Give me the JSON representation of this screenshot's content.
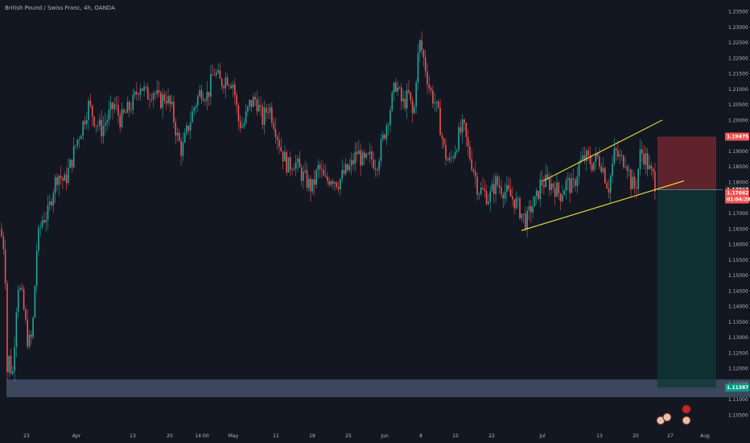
{
  "header": {
    "title": "British Pound / Swiss Franc, 4h, OANDA"
  },
  "colors": {
    "background": "#131722",
    "up": "#26a69a",
    "down": "#ef5350",
    "trendline": "#f2e33a",
    "zone": "#5d6d8e",
    "stop_zone": "#7a2a2f",
    "target_zone": "#0f3a3a"
  },
  "chart_data": {
    "type": "candlestick",
    "symbol": "GBPCHF",
    "interval": "4h",
    "source": "OANDA",
    "ylim": [
      1.1025,
      1.2375
    ],
    "y_ticks": [
      "1.23500",
      "1.23000",
      "1.22500",
      "1.22000",
      "1.21500",
      "1.21000",
      "1.20500",
      "1.20000",
      "1.19500",
      "1.19000",
      "1.18500",
      "1.18000",
      "1.17500",
      "1.17000",
      "1.16500",
      "1.16000",
      "1.15500",
      "1.15000",
      "1.14500",
      "1.14000",
      "1.13500",
      "1.13000",
      "1.12500",
      "1.12000",
      "1.11500",
      "1.11000",
      "1.10500"
    ],
    "x_ticks": [
      "23",
      "Apr",
      "13",
      "20",
      "14:00",
      "May",
      "11",
      "18",
      "25",
      "Jun",
      "8",
      "15",
      "22",
      "Jul",
      "13",
      "20",
      "27",
      "Aug"
    ],
    "path": [
      [
        0,
        1.165
      ],
      [
        6,
        1.158
      ],
      [
        9,
        1.118
      ],
      [
        12,
        1.125
      ],
      [
        15,
        1.115
      ],
      [
        22,
        1.148
      ],
      [
        28,
        1.142
      ],
      [
        35,
        1.128
      ],
      [
        40,
        1.13
      ],
      [
        46,
        1.16
      ],
      [
        52,
        1.168
      ],
      [
        60,
        1.17
      ],
      [
        66,
        1.178
      ],
      [
        72,
        1.183
      ],
      [
        80,
        1.18
      ],
      [
        88,
        1.186
      ],
      [
        95,
        1.193
      ],
      [
        102,
        1.198
      ],
      [
        110,
        1.205
      ],
      [
        118,
        1.2
      ],
      [
        126,
        1.197
      ],
      [
        134,
        1.201
      ],
      [
        142,
        1.205
      ],
      [
        150,
        1.2
      ],
      [
        158,
        1.203
      ],
      [
        166,
        1.206
      ],
      [
        174,
        1.212
      ],
      [
        182,
        1.208
      ],
      [
        190,
        1.21
      ],
      [
        198,
        1.206
      ],
      [
        206,
        1.208
      ],
      [
        214,
        1.203
      ],
      [
        220,
        1.195
      ],
      [
        226,
        1.19
      ],
      [
        234,
        1.198
      ],
      [
        242,
        1.205
      ],
      [
        250,
        1.21
      ],
      [
        258,
        1.208
      ],
      [
        266,
        1.216
      ],
      [
        274,
        1.212
      ],
      [
        282,
        1.214
      ],
      [
        290,
        1.212
      ],
      [
        296,
        1.2
      ],
      [
        302,
        1.198
      ],
      [
        310,
        1.205
      ],
      [
        318,
        1.207
      ],
      [
        326,
        1.2
      ],
      [
        334,
        1.205
      ],
      [
        342,
        1.198
      ],
      [
        350,
        1.19
      ],
      [
        358,
        1.185
      ],
      [
        366,
        1.187
      ],
      [
        374,
        1.183
      ],
      [
        382,
        1.18
      ],
      [
        388,
        1.178
      ],
      [
        396,
        1.185
      ],
      [
        404,
        1.18
      ],
      [
        412,
        1.182
      ],
      [
        420,
        1.18
      ],
      [
        428,
        1.183
      ],
      [
        436,
        1.185
      ],
      [
        444,
        1.19
      ],
      [
        452,
        1.186
      ],
      [
        460,
        1.188
      ],
      [
        468,
        1.186
      ],
      [
        476,
        1.194
      ],
      [
        484,
        1.203
      ],
      [
        492,
        1.212
      ],
      [
        500,
        1.205
      ],
      [
        508,
        1.208
      ],
      [
        514,
        1.2
      ],
      [
        518,
        1.218
      ],
      [
        522,
        1.225
      ],
      [
        528,
        1.218
      ],
      [
        534,
        1.21
      ],
      [
        540,
        1.206
      ],
      [
        546,
        1.2
      ],
      [
        552,
        1.19
      ],
      [
        558,
        1.186
      ],
      [
        564,
        1.19
      ],
      [
        570,
        1.195
      ],
      [
        576,
        1.198
      ],
      [
        582,
        1.19
      ],
      [
        588,
        1.185
      ],
      [
        594,
        1.178
      ],
      [
        600,
        1.177
      ],
      [
        608,
        1.175
      ],
      [
        616,
        1.18
      ],
      [
        624,
        1.178
      ],
      [
        632,
        1.176
      ],
      [
        640,
        1.174
      ],
      [
        648,
        1.17
      ],
      [
        654,
        1.167
      ],
      [
        660,
        1.172
      ],
      [
        666,
        1.174
      ],
      [
        672,
        1.18
      ],
      [
        680,
        1.18
      ],
      [
        688,
        1.179
      ],
      [
        696,
        1.176
      ],
      [
        704,
        1.18
      ],
      [
        712,
        1.178
      ],
      [
        720,
        1.186
      ],
      [
        728,
        1.188
      ],
      [
        736,
        1.186
      ],
      [
        742,
        1.188
      ],
      [
        748,
        1.186
      ],
      [
        756,
        1.178
      ],
      [
        764,
        1.19
      ],
      [
        772,
        1.187
      ],
      [
        778,
        1.188
      ],
      [
        784,
        1.18
      ],
      [
        790,
        1.178
      ],
      [
        796,
        1.19
      ],
      [
        802,
        1.188
      ],
      [
        808,
        1.183
      ],
      [
        812,
        1.182
      ],
      [
        816,
        1.1776
      ]
    ],
    "candles": "generated along path",
    "trendlines": [
      {
        "name": "upper",
        "from": [
          675,
          1.1805
        ],
        "to": [
          823,
          1.2001
        ]
      },
      {
        "name": "lower",
        "from": [
          648,
          1.1645
        ],
        "to": [
          850,
          1.1805
        ]
      }
    ],
    "zones": [
      {
        "name": "support-zone",
        "top": 1.1165,
        "bottom": 1.1108,
        "x0": 8,
        "x1": 932
      },
      {
        "name": "stop-zone",
        "top": 1.19475,
        "bottom": 1.17767,
        "x0": 817,
        "x1": 890
      },
      {
        "name": "target-zone",
        "top": 1.17767,
        "bottom": 1.11387,
        "x0": 817,
        "x1": 890
      }
    ],
    "price_tags": [
      {
        "label": "1.19475",
        "value": 1.19475,
        "color": "#ef5350"
      },
      {
        "label": "1.17767",
        "value": 1.17767,
        "color": "#2a2e39"
      },
      {
        "label": "1.17662",
        "value": 1.17662,
        "color": "#ef5350"
      },
      {
        "label": "01:04:28",
        "value": 1.1745,
        "color": "#ef5350"
      },
      {
        "label": "1.11387",
        "value": 1.11387,
        "color": "#089981"
      }
    ]
  }
}
